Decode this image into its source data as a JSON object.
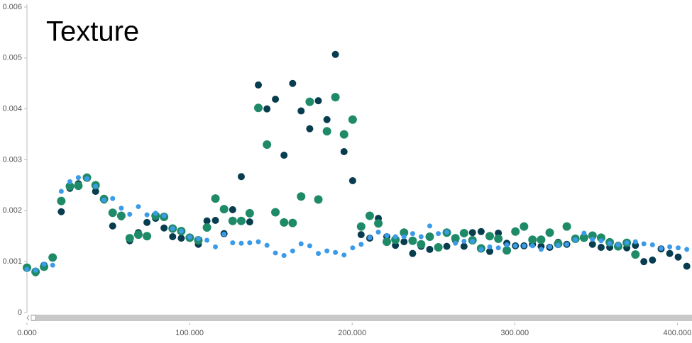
{
  "chart_data": {
    "type": "scatter",
    "title": "Texture",
    "x": [
      0,
      5.3,
      10.5,
      15.8,
      21.1,
      26.4,
      31.6,
      36.9,
      42.2,
      47.4,
      52.7,
      58,
      63.2,
      68.5,
      73.8,
      79.1,
      84.3,
      89.6,
      94.9,
      100.1,
      105.4,
      110.7,
      115.9,
      121.2,
      126.5,
      131.8,
      137,
      142.3,
      147.6,
      152.8,
      158.1,
      163.4,
      168.6,
      173.9,
      179.2,
      184.5,
      189.7,
      195,
      200.3,
      205.5,
      210.8,
      216.1,
      221.3,
      226.6,
      231.9,
      237.2,
      242.4,
      247.7,
      253,
      258.2,
      263.5,
      268.8,
      274,
      279.3,
      284.6,
      289.9,
      295.1,
      300.4,
      305.7,
      310.9,
      316.2,
      321.5,
      326.7,
      332,
      337.3,
      342.6,
      347.8,
      353.1,
      358.4,
      363.6,
      368.9,
      374.2,
      379.4,
      384.7,
      390,
      395.3,
      400.5,
      405.8
    ],
    "series": [
      {
        "color": "#073d4f",
        "marker_size": 5,
        "values": [
          0.00088,
          0.00078,
          0.00093,
          0.00109,
          0.00198,
          0.00244,
          0.00253,
          0.00265,
          0.00238,
          0.00221,
          0.0017,
          0.00188,
          0.00141,
          0.00157,
          0.00177,
          0.00185,
          0.00166,
          0.00149,
          0.00146,
          0.00146,
          0.00134,
          0.0018,
          0.00181,
          0.00155,
          0.00202,
          0.00267,
          0.00178,
          0.00447,
          0.004,
          0.00419,
          0.00309,
          0.0045,
          0.00396,
          0.00361,
          0.00416,
          0.00379,
          0.00507,
          0.00316,
          0.00259,
          0.00153,
          0.00146,
          0.00185,
          0.00149,
          0.00132,
          0.00139,
          0.00116,
          0.0013,
          0.00124,
          0.00127,
          0.0013,
          0.00142,
          0.0013,
          0.00157,
          0.00159,
          0.0012,
          0.00156,
          0.00136,
          0.00131,
          0.00131,
          0.00134,
          0.0013,
          0.00128,
          0.00138,
          0.00134,
          0.00146,
          0.00149,
          0.00134,
          0.00128,
          0.00128,
          0.00132,
          0.00127,
          0.00132,
          0.001,
          0.00103,
          0.00125,
          0.00116,
          0.00109,
          0.00091
        ]
      },
      {
        "color": "#1f8a68",
        "marker_size": 6,
        "values": [
          0.00088,
          0.0008,
          0.0009,
          0.00108,
          0.00219,
          0.00248,
          0.00249,
          0.00265,
          0.0025,
          0.00223,
          0.00196,
          0.0019,
          0.00146,
          0.00153,
          0.0015,
          0.0019,
          0.00188,
          0.00165,
          0.0016,
          0.00147,
          0.00142,
          0.00167,
          0.00224,
          0.00203,
          0.0018,
          0.0018,
          0.00195,
          0.00402,
          0.0033,
          0.00197,
          0.00177,
          0.00176,
          0.00228,
          0.00414,
          0.00222,
          0.00356,
          0.00423,
          0.0035,
          0.00379,
          0.00169,
          0.0019,
          0.00175,
          0.00139,
          0.00143,
          0.00157,
          0.00141,
          0.00134,
          0.00149,
          0.00128,
          0.00157,
          0.00146,
          0.00156,
          0.00142,
          0.00126,
          0.0015,
          0.00145,
          0.00122,
          0.00159,
          0.00169,
          0.00143,
          0.00143,
          0.00157,
          0.00135,
          0.00169,
          0.00145,
          0.00147,
          0.00151,
          0.00147,
          0.00138,
          0.0013,
          0.00137,
          0.00114,
          null,
          null,
          null,
          null,
          null,
          null
        ]
      },
      {
        "color": "#3b9be8",
        "marker_size": 3.5,
        "values": [
          0.00085,
          0.00083,
          0.00095,
          0.00093,
          0.00238,
          0.00257,
          0.00265,
          0.00263,
          0.00248,
          0.00221,
          0.00224,
          0.00205,
          0.00193,
          0.00208,
          0.00192,
          0.00195,
          0.0019,
          0.00165,
          0.0016,
          0.00148,
          0.00145,
          0.00142,
          0.00129,
          0.00154,
          0.00137,
          0.00136,
          0.00137,
          0.00139,
          0.00132,
          0.00117,
          0.00112,
          0.00121,
          0.00135,
          0.00131,
          0.00116,
          0.00121,
          0.00118,
          0.00113,
          0.00127,
          0.00134,
          0.00147,
          0.00158,
          0.00151,
          0.00149,
          0.00149,
          0.00155,
          0.00149,
          0.0017,
          0.00155,
          0.00158,
          0.00136,
          0.0014,
          0.0014,
          0.00124,
          0.00129,
          0.00127,
          0.00133,
          0.00131,
          0.00131,
          0.00131,
          0.00124,
          0.00129,
          0.00132,
          0.00134,
          0.00143,
          0.00156,
          0.00144,
          0.00141,
          0.00136,
          0.00133,
          0.00137,
          0.00139,
          0.00135,
          0.00133,
          0.00126,
          0.00129,
          0.00127,
          0.00124
        ]
      }
    ],
    "xlim": [
      0,
      409
    ],
    "ylim": [
      0,
      0.006
    ],
    "xticks": [
      {
        "value": 0,
        "label": "0.000"
      },
      {
        "value": 100,
        "label": "100.000"
      },
      {
        "value": 200,
        "label": "200.000"
      },
      {
        "value": 300,
        "label": "300.000"
      },
      {
        "value": 400,
        "label": "400.000"
      }
    ],
    "yticks": [
      0,
      0.001,
      0.002,
      0.003,
      0.004,
      0.005,
      0.006
    ]
  }
}
